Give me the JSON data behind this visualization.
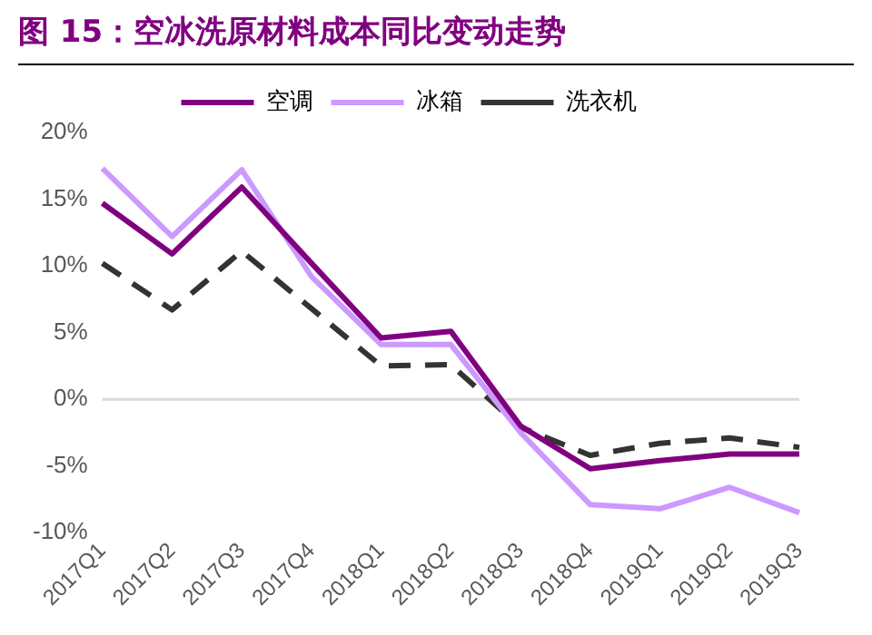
{
  "chart_data": {
    "type": "line",
    "title": "图 15：空冰洗原材料成本同比变动走势",
    "categories": [
      "2017Q1",
      "2017Q2",
      "2017Q3",
      "2017Q4",
      "2018Q1",
      "2018Q2",
      "2018Q3",
      "2018Q4",
      "2019Q1",
      "2019Q2",
      "2019Q3"
    ],
    "series": [
      {
        "name": "空调",
        "color": "#800080",
        "values": [
          14.7,
          10.9,
          15.9,
          10.2,
          4.6,
          5.1,
          -2.0,
          -5.2,
          -4.6,
          -4.1,
          -4.1
        ]
      },
      {
        "name": "冰箱",
        "color": "#cc99ff",
        "values": [
          17.3,
          12.2,
          17.2,
          9.2,
          4.1,
          4.1,
          -2.5,
          -7.9,
          -8.2,
          -6.6,
          -8.5
        ]
      },
      {
        "name": "洗衣机",
        "color": "#333333",
        "values": [
          10.2,
          6.7,
          11.1,
          6.8,
          2.5,
          2.6,
          -2.1,
          -4.2,
          -3.3,
          -2.9,
          -3.6
        ],
        "line_style": "dashed"
      }
    ],
    "ylim": [
      -10,
      20
    ],
    "yticks": [
      {
        "value": -10,
        "label": "-10%"
      },
      {
        "value": -5,
        "label": "-5%"
      },
      {
        "value": 0,
        "label": "0%"
      },
      {
        "value": 5,
        "label": "5%"
      },
      {
        "value": 10,
        "label": "10%"
      },
      {
        "value": 15,
        "label": "15%"
      },
      {
        "value": 20,
        "label": "20%"
      }
    ],
    "ref_lines": [
      {
        "axis": "y",
        "value": 0,
        "color": "#d9d9d9"
      }
    ],
    "grid": false,
    "legend": "top",
    "marker": "none",
    "line_style": "solid"
  }
}
